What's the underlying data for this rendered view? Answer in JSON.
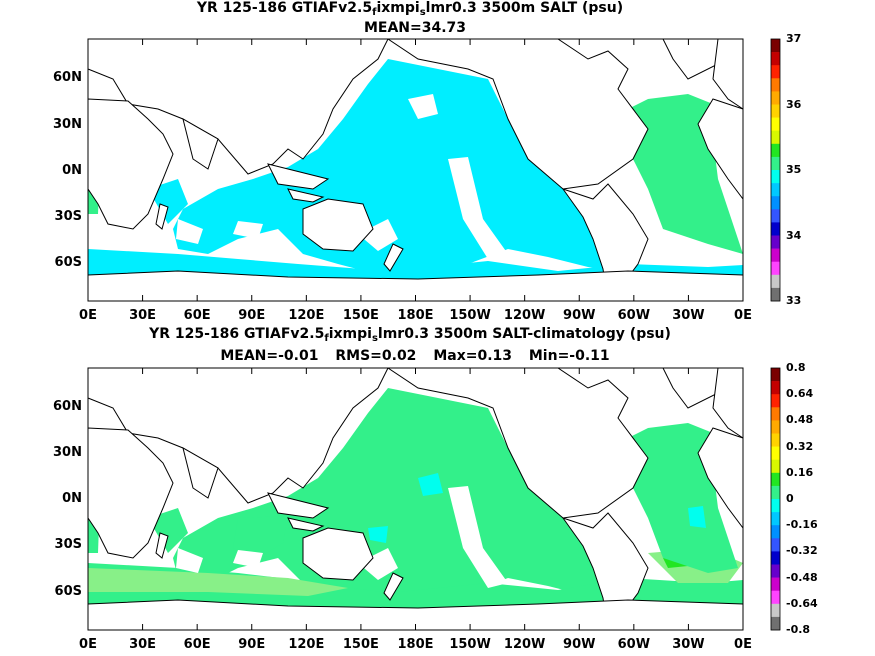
{
  "panels": [
    {
      "title_pre": "YR 125-186 GTIAFv2.5",
      "title_sub1": "f",
      "title_mid": "ixmpi",
      "title_sub2": "s",
      "title_post": "lmr0.3 3500m SALT (psu)",
      "stats": [
        "MEAN=34.73"
      ],
      "colorbar_labels": [
        "37",
        "36",
        "35",
        "34",
        "33"
      ],
      "colorbar_colors": [
        "#7a0000",
        "#c40000",
        "#ff2200",
        "#ff7a00",
        "#ffaa00",
        "#ffd200",
        "#ffff00",
        "#d8f800",
        "#22e622",
        "#33f08a",
        "#00ffee",
        "#00c8ff",
        "#0090ff",
        "#3355ff",
        "#0000cc",
        "#6600cc",
        "#cc00cc",
        "#ff44ff",
        "#c8c8c8",
        "#707070"
      ]
    },
    {
      "title_pre": "YR 125-186 GTIAFv2.5",
      "title_sub1": "f",
      "title_mid": "ixmpi",
      "title_sub2": "s",
      "title_post": "lmr0.3 3500m SALT-climatology (psu)",
      "stats": [
        "MEAN=-0.01",
        "RMS=0.02",
        "Max=0.13",
        "Min=-0.11"
      ],
      "colorbar_labels": [
        "0.8",
        "0.64",
        "0.48",
        "0.32",
        "0.16",
        "0",
        "-0.16",
        "-0.32",
        "-0.48",
        "-0.64",
        "-0.8"
      ],
      "colorbar_colors": [
        "#7a0000",
        "#c40000",
        "#ff2200",
        "#ff7a00",
        "#ffaa00",
        "#ffd200",
        "#ffff00",
        "#d8f800",
        "#22e622",
        "#33f08a",
        "#00ffee",
        "#00c8ff",
        "#0090ff",
        "#3355ff",
        "#0000cc",
        "#6600cc",
        "#cc00cc",
        "#ff44ff",
        "#c8c8c8",
        "#707070"
      ]
    }
  ],
  "axes": {
    "x_ticks": [
      "0E",
      "30E",
      "60E",
      "90E",
      "120E",
      "150E",
      "180E",
      "150W",
      "120W",
      "90W",
      "60W",
      "30W",
      "0E"
    ],
    "y_ticks": [
      "60N",
      "30N",
      "0N",
      "30S",
      "60S"
    ]
  },
  "colors": {
    "panel1_ocean": "#00eeff",
    "panel1_high": "#33f08a",
    "panel2_ocean": "#33f08a",
    "panel2_pos": "#88f088",
    "panel2_neg": "#00ffee"
  }
}
